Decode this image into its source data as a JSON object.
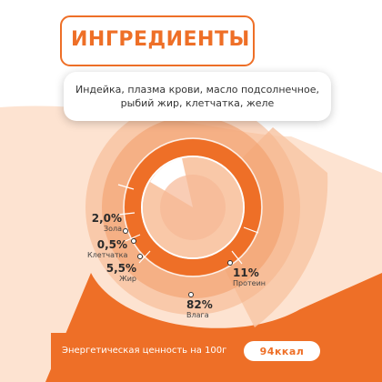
{
  "title": "ИНГРЕДИЕНТЫ",
  "ingredients": {
    "line1": "Индейка, плазма крови, масло подсолнечное,",
    "line2": "рыбий жир, клетчатка, желе"
  },
  "composition": [
    {
      "id": "ash",
      "percent": "2,0%",
      "label": "Зола"
    },
    {
      "id": "fiber",
      "percent": "0,5%",
      "label": "Клетчатка"
    },
    {
      "id": "fat",
      "percent": "5,5%",
      "label": "Жир"
    },
    {
      "id": "protein",
      "percent": "11%",
      "label": "Протеин"
    },
    {
      "id": "moisture",
      "percent": "82%",
      "label": "Влага"
    }
  ],
  "energy": {
    "label": "Энергетическая ценность на 100г",
    "value": "94ккал"
  },
  "colors": {
    "accent": "#ee6f27",
    "light_orange": "#f6b48a",
    "pale_orange": "#fde3d1"
  }
}
